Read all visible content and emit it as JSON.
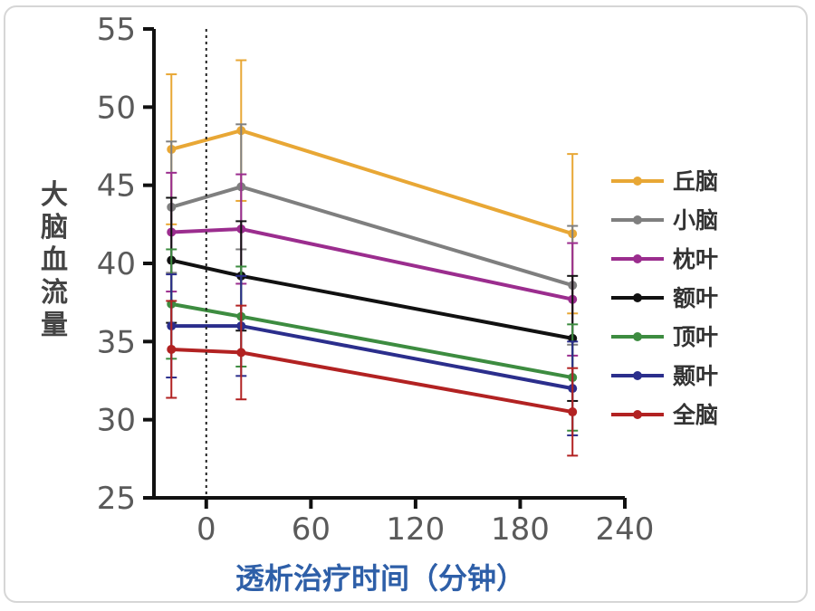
{
  "chart_data": {
    "type": "line",
    "xlabel": "透析治疗时间（分钟）",
    "ylabel": "大脑血流量",
    "xlim": [
      -30,
      240
    ],
    "ylim": [
      25,
      55
    ],
    "xticks": [
      0,
      60,
      120,
      180,
      240
    ],
    "xtick_labels": [
      "0",
      "60",
      "120",
      "180",
      "240"
    ],
    "yticks": [
      25,
      30,
      35,
      40,
      45,
      50,
      55
    ],
    "ytick_labels": [
      "25",
      "30",
      "35",
      "40",
      "45",
      "50",
      "55"
    ],
    "reference_line_x": 0,
    "legend_position": "right",
    "grid": false,
    "x": [
      -20,
      20,
      210
    ],
    "series": [
      {
        "name": "丘脑",
        "color": "#e8a735",
        "values": [
          47.3,
          48.5,
          41.9
        ],
        "errors": [
          4.8,
          4.5,
          5.1
        ]
      },
      {
        "name": "小脑",
        "color": "#7f7f7f",
        "values": [
          43.6,
          44.9,
          38.6
        ],
        "errors": [
          4.2,
          4.0,
          3.8
        ]
      },
      {
        "name": "枕叶",
        "color": "#9b2d8e",
        "values": [
          42.0,
          42.2,
          37.7
        ],
        "errors": [
          3.8,
          3.5,
          3.6
        ]
      },
      {
        "name": "额叶",
        "color": "#111111",
        "values": [
          40.2,
          39.2,
          35.2
        ],
        "errors": [
          4.0,
          3.5,
          4.0
        ]
      },
      {
        "name": "顶叶",
        "color": "#3d8c40",
        "values": [
          37.4,
          36.6,
          32.7
        ],
        "errors": [
          3.5,
          3.2,
          3.4
        ]
      },
      {
        "name": "颞叶",
        "color": "#2b2e8c",
        "values": [
          36.0,
          36.0,
          32.0
        ],
        "errors": [
          3.3,
          3.2,
          3.0
        ]
      },
      {
        "name": "全脑",
        "color": "#b22222",
        "values": [
          34.5,
          34.3,
          30.5
        ],
        "errors": [
          3.1,
          3.0,
          2.8
        ]
      }
    ]
  }
}
